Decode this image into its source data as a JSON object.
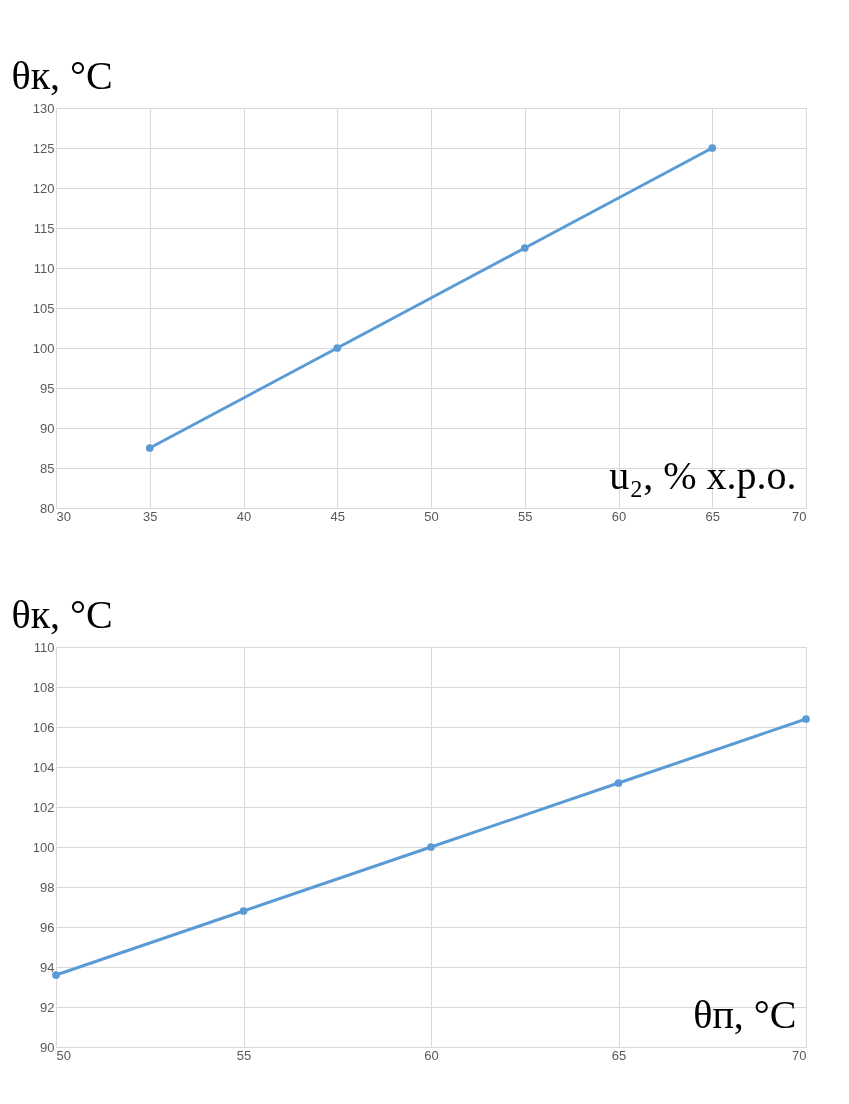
{
  "chart_data": [
    {
      "type": "line",
      "ylabel": "θк, °C",
      "xlabel": "u₂, % х.р.о.",
      "x": [
        35,
        45,
        55,
        65
      ],
      "series": [
        {
          "color": "#5b9bd5",
          "values": [
            87.5,
            100,
            112.5,
            125
          ]
        }
      ],
      "xlim": [
        30,
        70
      ],
      "xticks": [
        30,
        35,
        40,
        45,
        50,
        55,
        60,
        65,
        70
      ],
      "ylim": [
        80,
        130
      ],
      "yticks": [
        80,
        85,
        90,
        95,
        100,
        105,
        110,
        115,
        120,
        125,
        130
      ],
      "grid": true,
      "marker": "circle",
      "line_style": "solid"
    },
    {
      "type": "line",
      "ylabel": "θк, °C",
      "xlabel": "θп, °C",
      "x": [
        50,
        55,
        60,
        65,
        70
      ],
      "series": [
        {
          "color": "#5b9bd5",
          "values": [
            93.6,
            96.8,
            100,
            103.2,
            106.4
          ]
        }
      ],
      "xlim": [
        50,
        70
      ],
      "xticks": [
        50,
        55,
        60,
        65,
        70
      ],
      "ylim": [
        90,
        110
      ],
      "yticks": [
        90,
        92,
        94,
        96,
        98,
        100,
        102,
        104,
        106,
        108,
        110
      ],
      "grid": true,
      "marker": "circle",
      "line_style": "solid"
    }
  ]
}
